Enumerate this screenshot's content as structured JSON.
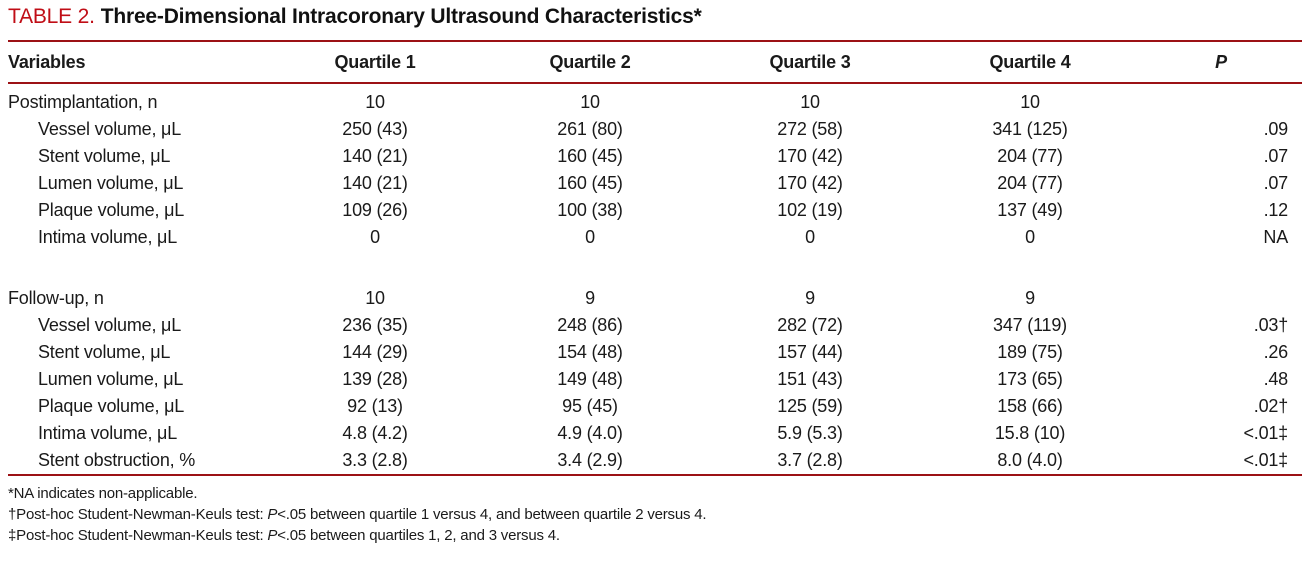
{
  "colors": {
    "accent": "#c00d16",
    "rule": "#9c1115"
  },
  "title": {
    "label": "TABLE 2.",
    "text": "Three-Dimensional Intracoronary Ultrasound Characteristics*"
  },
  "table": {
    "columns": [
      "Variables",
      "Quartile 1",
      "Quartile 2",
      "Quartile 3",
      "Quartile 4",
      "P"
    ],
    "sections": [
      {
        "header": {
          "label": "Postimplantation, n",
          "values": [
            "10",
            "10",
            "10",
            "10"
          ],
          "p": ""
        },
        "rows": [
          {
            "label": "Vessel volume, μL",
            "values": [
              "250 (43)",
              "261 (80)",
              "272 (58)",
              "341 (125)"
            ],
            "p": ".09"
          },
          {
            "label": "Stent volume, μL",
            "values": [
              "140 (21)",
              "160 (45)",
              "170 (42)",
              "204 (77)"
            ],
            "p": ".07"
          },
          {
            "label": "Lumen volume, μL",
            "values": [
              "140 (21)",
              "160 (45)",
              "170 (42)",
              "204 (77)"
            ],
            "p": ".07"
          },
          {
            "label": "Plaque volume, μL",
            "values": [
              "109 (26)",
              "100 (38)",
              "102 (19)",
              "137 (49)"
            ],
            "p": ".12"
          },
          {
            "label": "Intima volume, μL",
            "values": [
              "0",
              "0",
              "0",
              "0"
            ],
            "p": "NA"
          }
        ]
      },
      {
        "header": {
          "label": "Follow-up, n",
          "values": [
            "10",
            "9",
            "9",
            "9"
          ],
          "p": ""
        },
        "rows": [
          {
            "label": "Vessel volume, μL",
            "values": [
              "236 (35)",
              "248 (86)",
              "282 (72)",
              "347 (119)"
            ],
            "p": ".03†"
          },
          {
            "label": "Stent volume, μL",
            "values": [
              "144 (29)",
              "154 (48)",
              "157 (44)",
              "189 (75)"
            ],
            "p": ".26"
          },
          {
            "label": "Lumen volume, μL",
            "values": [
              "139 (28)",
              "149 (48)",
              "151 (43)",
              "173 (65)"
            ],
            "p": ".48"
          },
          {
            "label": "Plaque volume, μL",
            "values": [
              "92 (13)",
              "95 (45)",
              "125 (59)",
              "158 (66)"
            ],
            "p": ".02†"
          },
          {
            "label": "Intima volume, μL",
            "values": [
              "4.8 (4.2)",
              "4.9 (4.0)",
              "5.9 (5.3)",
              "15.8 (10)"
            ],
            "p": "<.01‡"
          },
          {
            "label": "Stent obstruction, %",
            "values": [
              "3.3 (2.8)",
              "3.4 (2.9)",
              "3.7 (2.8)",
              "8.0 (4.0)"
            ],
            "p": "<.01‡"
          }
        ]
      }
    ]
  },
  "footnotes": [
    {
      "prefix": "*NA indicates non-applicable.",
      "italic": "",
      "suffix": ""
    },
    {
      "prefix": "†Post-hoc Student-Newman-Keuls test: ",
      "italic": "P",
      "suffix": "<.05 between quartile 1 versus 4, and between quartile 2 versus 4."
    },
    {
      "prefix": "‡Post-hoc Student-Newman-Keuls test: ",
      "italic": "P",
      "suffix": "<.05 between quartiles 1, 2, and 3 versus 4."
    }
  ]
}
